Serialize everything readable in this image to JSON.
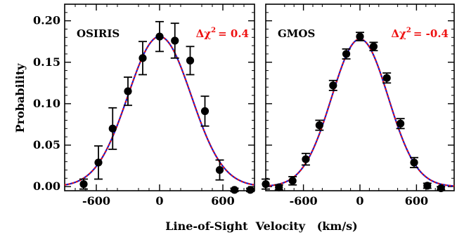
{
  "figure": {
    "xlabel": "Line-of-Sight  Velocity   (km/s)",
    "ylabel": "Probability"
  },
  "chart_data": [
    {
      "type": "scatter",
      "panel_label": "OSIRIS",
      "delta_prefix": "Δχ",
      "delta_sup": "2",
      "delta_value": "= 0.4",
      "xlim": [
        -900,
        900
      ],
      "ylim": [
        -0.005,
        0.22
      ],
      "xticks": [
        -600,
        0,
        600
      ],
      "xtick_labels": [
        "-600",
        "0",
        "600"
      ],
      "yticks": [
        0.0,
        0.05,
        0.1,
        0.15,
        0.2
      ],
      "ytick_labels": [
        "0.00",
        "0.05",
        "0.10",
        "0.15",
        "0.20"
      ],
      "points": {
        "x": [
          -720,
          -580,
          -445,
          -300,
          -160,
          0,
          145,
          290,
          430,
          570,
          710,
          860
        ],
        "y": [
          0.003,
          0.029,
          0.07,
          0.115,
          0.155,
          0.181,
          0.176,
          0.152,
          0.091,
          0.02,
          -0.004,
          -0.004
        ],
        "err": [
          0.006,
          0.02,
          0.025,
          0.017,
          0.02,
          0.018,
          0.021,
          0.017,
          0.018,
          0.012,
          0.002,
          0.002
        ]
      },
      "model": {
        "type": "gaussian",
        "amplitude": 0.181,
        "mean": 0,
        "sigma": 300
      },
      "line_colors": {
        "solid": "#1a1acc",
        "dotted": "#ee1111"
      }
    },
    {
      "type": "scatter",
      "panel_label": "GMOS",
      "delta_prefix": "Δχ",
      "delta_sup": "2",
      "delta_value": "= -0.4",
      "xlim": [
        -1000,
        1000
      ],
      "ylim": [
        -0.005,
        0.22
      ],
      "xticks": [
        -600,
        0,
        600
      ],
      "xtick_labels": [
        "-600",
        "0",
        "600"
      ],
      "yticks": [
        0.0,
        0.05,
        0.1,
        0.15,
        0.2
      ],
      "ytick_labels": [],
      "points": {
        "x": [
          -1000,
          -860,
          -715,
          -575,
          -430,
          -285,
          -145,
          0,
          145,
          285,
          430,
          575,
          715,
          860
        ],
        "y": [
          0.003,
          -0.001,
          0.007,
          0.033,
          0.074,
          0.122,
          0.16,
          0.181,
          0.169,
          0.131,
          0.076,
          0.029,
          0.001,
          -0.002
        ],
        "err": [
          0.006,
          0.003,
          0.005,
          0.007,
          0.006,
          0.006,
          0.006,
          0.005,
          0.005,
          0.006,
          0.006,
          0.006,
          0.003,
          0.002
        ]
      },
      "model": {
        "type": "gaussian",
        "amplitude": 0.178,
        "mean": 0,
        "sigma": 300
      },
      "line_colors": {
        "solid": "#1a1acc",
        "dotted": "#ee1111"
      }
    }
  ]
}
